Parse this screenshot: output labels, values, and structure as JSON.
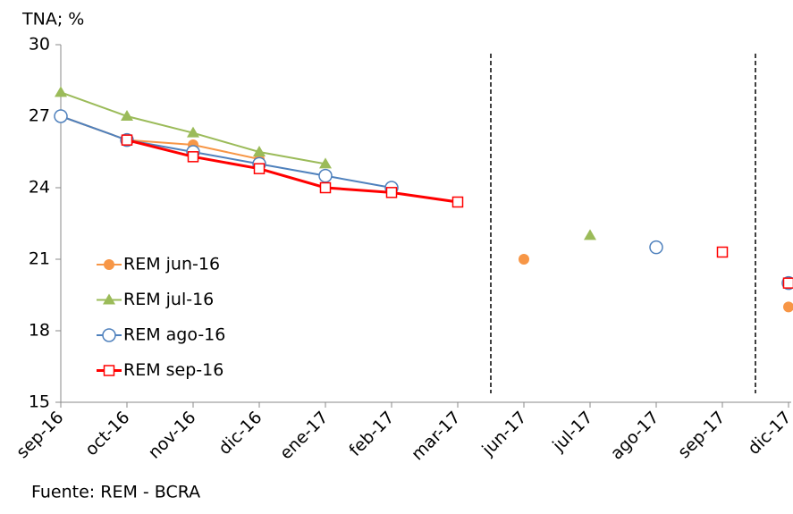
{
  "chart_data": {
    "type": "line",
    "title": "TNA; %",
    "source": "Fuente: REM - BCRA",
    "categories": [
      "sep-16",
      "oct-16",
      "nov-16",
      "dic-16",
      "ene-17",
      "feb-17",
      "mar-17",
      "jun-17",
      "jul-17",
      "ago-17",
      "sep-17",
      "dic-17"
    ],
    "ylim": [
      15,
      30
    ],
    "yticks": [
      15,
      18,
      21,
      24,
      27,
      30
    ],
    "legend": "left",
    "series": [
      {
        "name": "REM jun-16",
        "color": "#f79646",
        "marker": "circle",
        "values": [
          27,
          26,
          25.8,
          25.2,
          null,
          null,
          null,
          21,
          null,
          null,
          null,
          19
        ]
      },
      {
        "name": "REM jul-16",
        "color": "#9bbb59",
        "marker": "triangle",
        "values": [
          28,
          27,
          26.3,
          25.5,
          25,
          null,
          null,
          null,
          22,
          null,
          null,
          null
        ]
      },
      {
        "name": "REM ago-16",
        "color": "#4f81bd",
        "marker": "open-circle",
        "values": [
          27,
          26,
          25.5,
          25,
          24.5,
          24,
          null,
          null,
          null,
          21.5,
          null,
          20
        ]
      },
      {
        "name": "REM sep-16",
        "color": "#ff0000",
        "marker": "open-square",
        "values": [
          null,
          26,
          25.3,
          24.8,
          24,
          23.8,
          23.4,
          null,
          null,
          null,
          21.3,
          20
        ]
      }
    ]
  }
}
